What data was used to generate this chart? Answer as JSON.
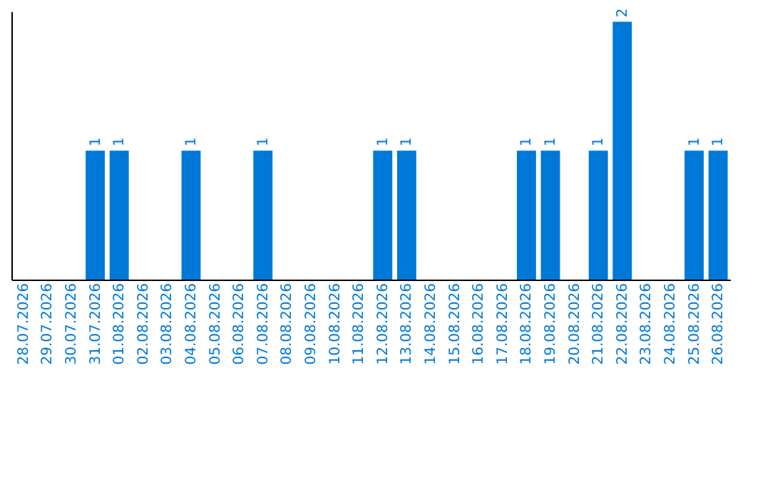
{
  "chart_data": {
    "type": "bar",
    "categories": [
      "28.07.2026",
      "29.07.2026",
      "30.07.2026",
      "31.07.2026",
      "01.08.2026",
      "02.08.2026",
      "03.08.2026",
      "04.08.2026",
      "05.08.2026",
      "06.08.2026",
      "07.08.2026",
      "08.08.2026",
      "09.08.2026",
      "10.08.2026",
      "11.08.2026",
      "12.08.2026",
      "13.08.2026",
      "14.08.2026",
      "15.08.2026",
      "16.08.2026",
      "17.08.2026",
      "18.08.2026",
      "19.08.2026",
      "20.08.2026",
      "21.08.2026",
      "22.08.2026",
      "23.08.2026",
      "24.08.2026",
      "25.08.2026",
      "26.08.2026"
    ],
    "values": [
      0,
      0,
      0,
      1,
      1,
      0,
      0,
      1,
      0,
      0,
      1,
      0,
      0,
      0,
      0,
      1,
      1,
      0,
      0,
      0,
      0,
      1,
      1,
      0,
      1,
      2,
      0,
      0,
      1,
      1
    ],
    "value_labels": [
      null,
      null,
      null,
      "1",
      "1",
      null,
      null,
      "1",
      null,
      null,
      "1",
      null,
      null,
      null,
      null,
      "1",
      "1",
      null,
      null,
      null,
      null,
      "1",
      "1",
      null,
      "1",
      "2",
      null,
      null,
      "1",
      "1"
    ],
    "color": "#0078d7",
    "ylim": [
      0,
      2.08
    ],
    "tick_labels": "x",
    "grid": false
  }
}
